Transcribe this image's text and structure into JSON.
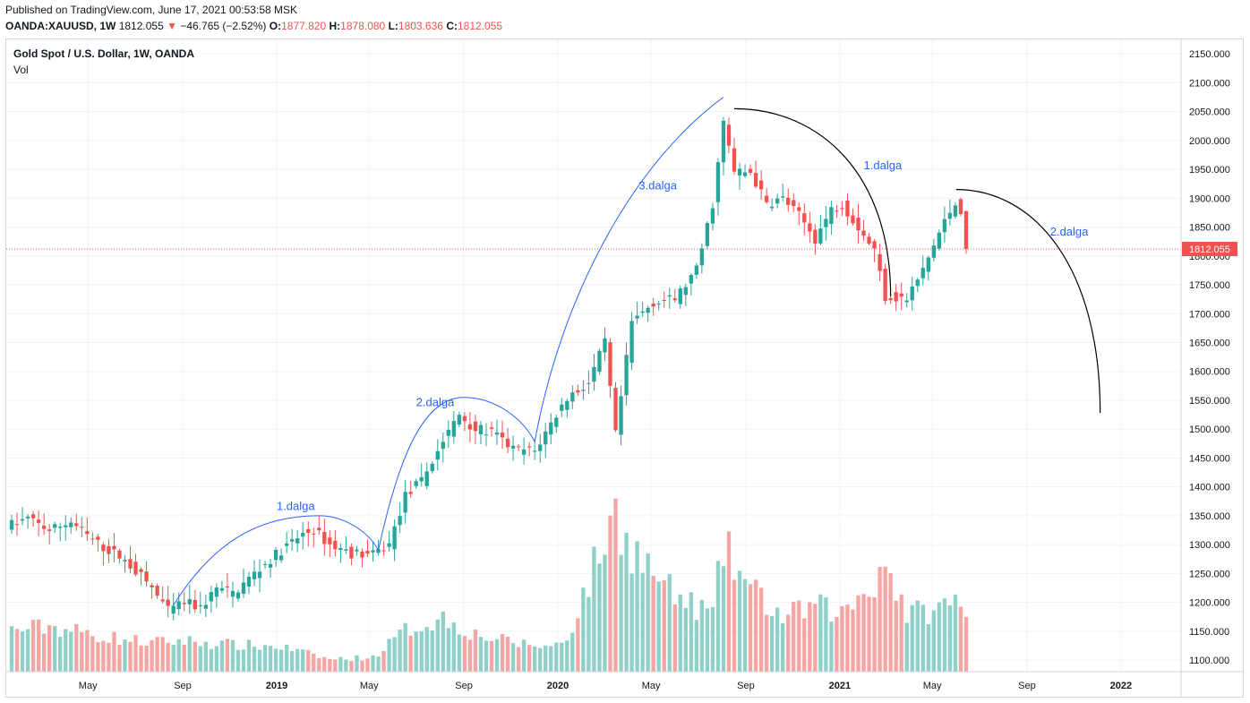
{
  "header": {
    "published": "Published on TradingView.com, June 17, 2021 00:53:58 MSK",
    "symbol": "OANDA:XAUUSD, 1W",
    "last": "1812.055",
    "change_arrow": "▼",
    "change": "−46.765 (−2.52%)",
    "o_label": "O:",
    "o_value": "1877.820",
    "h_label": "H:",
    "h_value": "1878.080",
    "l_label": "L:",
    "l_value": "1803.636",
    "c_label": "C:",
    "c_value": "1812.055"
  },
  "legend": {
    "title": "Gold Spot / U.S. Dollar, 1W, OANDA",
    "volume": "Vol"
  },
  "colors": {
    "up": "#26a69a",
    "down": "#ef5350",
    "vol_up": "#8fd0c8",
    "vol_down": "#f5a5a2",
    "wave_line": "#2962ff",
    "projection": "#000000"
  },
  "chart_data": {
    "type": "candlestick",
    "y_axis": {
      "range": [
        1080,
        2175
      ],
      "ticks": [
        1100,
        1150,
        1200,
        1250,
        1300,
        1350,
        1400,
        1450,
        1500,
        1550,
        1600,
        1650,
        1700,
        1750,
        1800,
        1850,
        1900,
        1950,
        2000,
        2050,
        2100,
        2150
      ],
      "tick_labels": [
        "1100.000",
        "1150.000",
        "1200.000",
        "1250.000",
        "1300.000",
        "1350.000",
        "1400.000",
        "1450.000",
        "1500.000",
        "1550.000",
        "1600.000",
        "1650.000",
        "1700.000",
        "1750.000",
        "1800.000",
        "1850.000",
        "1900.000",
        "1950.000",
        "2000.000",
        "2050.000",
        "2100.000",
        "2150.000"
      ]
    },
    "x_axis": {
      "ticks": [
        {
          "label": "May",
          "date": "2018-05-01",
          "year": false
        },
        {
          "label": "Sep",
          "date": "2018-09-01",
          "year": false
        },
        {
          "label": "2019",
          "date": "2019-01-01",
          "year": true
        },
        {
          "label": "May",
          "date": "2019-05-01",
          "year": false
        },
        {
          "label": "Sep",
          "date": "2019-09-01",
          "year": false
        },
        {
          "label": "2020",
          "date": "2020-01-01",
          "year": true
        },
        {
          "label": "May",
          "date": "2020-05-01",
          "year": false
        },
        {
          "label": "Sep",
          "date": "2020-09-01",
          "year": false
        },
        {
          "label": "2021",
          "date": "2021-01-01",
          "year": true
        },
        {
          "label": "May",
          "date": "2021-05-01",
          "year": false
        },
        {
          "label": "Sep",
          "date": "2021-09-01",
          "year": false
        },
        {
          "label": "2022",
          "date": "2022-01-01",
          "year": true
        }
      ]
    },
    "last_price": 1812.055,
    "last_price_label": "1812.055",
    "price_path": [
      [
        "2018-01-22",
        1335
      ],
      [
        "2018-02-12",
        1345
      ],
      [
        "2018-03-12",
        1325
      ],
      [
        "2018-04-09",
        1340
      ],
      [
        "2018-04-30",
        1315
      ],
      [
        "2018-05-21",
        1295
      ],
      [
        "2018-06-11",
        1280
      ],
      [
        "2018-07-02",
        1255
      ],
      [
        "2018-07-23",
        1225
      ],
      [
        "2018-08-13",
        1185
      ],
      [
        "2018-09-03",
        1200
      ],
      [
        "2018-09-24",
        1190
      ],
      [
        "2018-10-15",
        1225
      ],
      [
        "2018-11-05",
        1215
      ],
      [
        "2018-12-03",
        1250
      ],
      [
        "2019-01-07",
        1290
      ],
      [
        "2019-02-04",
        1318
      ],
      [
        "2019-02-18",
        1325
      ],
      [
        "2019-03-11",
        1300
      ],
      [
        "2019-04-08",
        1285
      ],
      [
        "2019-05-06",
        1282
      ],
      [
        "2019-05-27",
        1300
      ],
      [
        "2019-06-17",
        1385
      ],
      [
        "2019-07-08",
        1410
      ],
      [
        "2019-08-05",
        1480
      ],
      [
        "2019-08-26",
        1525
      ],
      [
        "2019-09-16",
        1500
      ],
      [
        "2019-10-07",
        1495
      ],
      [
        "2019-11-04",
        1465
      ],
      [
        "2019-12-02",
        1462
      ],
      [
        "2019-12-23",
        1510
      ],
      [
        "2020-01-13",
        1555
      ],
      [
        "2020-02-10",
        1580
      ],
      [
        "2020-03-02",
        1650
      ],
      [
        "2020-03-16",
        1490
      ],
      [
        "2020-04-06",
        1685
      ],
      [
        "2020-05-04",
        1720
      ],
      [
        "2020-06-01",
        1725
      ],
      [
        "2020-06-29",
        1775
      ],
      [
        "2020-07-20",
        1890
      ],
      [
        "2020-08-03",
        2030
      ],
      [
        "2020-08-17",
        1945
      ],
      [
        "2020-09-07",
        1945
      ],
      [
        "2020-09-28",
        1890
      ],
      [
        "2020-10-19",
        1900
      ],
      [
        "2020-11-09",
        1870
      ],
      [
        "2020-11-30",
        1830
      ],
      [
        "2020-12-21",
        1880
      ],
      [
        "2021-01-04",
        1890
      ],
      [
        "2021-01-25",
        1850
      ],
      [
        "2021-02-15",
        1810
      ],
      [
        "2021-03-01",
        1730
      ],
      [
        "2021-03-29",
        1725
      ],
      [
        "2021-04-19",
        1775
      ],
      [
        "2021-05-10",
        1840
      ],
      [
        "2021-05-31",
        1895
      ],
      [
        "2021-06-07",
        1878
      ],
      [
        "2021-06-14",
        1812
      ]
    ],
    "volume_path": [
      [
        "2018-01-22",
        1.0
      ],
      [
        "2018-03-12",
        1.1
      ],
      [
        "2018-05-21",
        0.85
      ],
      [
        "2018-07-23",
        0.7
      ],
      [
        "2018-09-03",
        0.75
      ],
      [
        "2018-11-05",
        0.65
      ],
      [
        "2019-01-07",
        0.6
      ],
      [
        "2019-03-11",
        0.3
      ],
      [
        "2019-05-06",
        0.35
      ],
      [
        "2019-06-17",
        1.0
      ],
      [
        "2019-08-05",
        1.3
      ],
      [
        "2019-09-16",
        0.9
      ],
      [
        "2019-11-04",
        0.7
      ],
      [
        "2019-12-23",
        0.6
      ],
      [
        "2020-01-13",
        0.8
      ],
      [
        "2020-03-02",
        3.2
      ],
      [
        "2020-03-16",
        3.8
      ],
      [
        "2020-04-06",
        3.0
      ],
      [
        "2020-05-04",
        2.4
      ],
      [
        "2020-06-01",
        1.8
      ],
      [
        "2020-07-20",
        1.4
      ],
      [
        "2020-08-03",
        3.0
      ],
      [
        "2020-09-07",
        2.0
      ],
      [
        "2020-10-19",
        1.3
      ],
      [
        "2020-11-30",
        1.6
      ],
      [
        "2021-01-04",
        1.4
      ],
      [
        "2021-02-15",
        2.2
      ],
      [
        "2021-03-01",
        2.7
      ],
      [
        "2021-03-29",
        1.4
      ],
      [
        "2021-05-10",
        1.5
      ],
      [
        "2021-05-31",
        1.8
      ],
      [
        "2021-06-14",
        1.1
      ]
    ],
    "annotations": {
      "blue_waves": [
        {
          "label": "1.dalga",
          "start": [
            "2018-08-20",
            1195
          ],
          "peak": [
            "2019-02-25",
            1350
          ],
          "end": [
            "2019-05-13",
            1290
          ],
          "label_pos": [
            "2019-01-01",
            1360
          ]
        },
        {
          "label": "2.dalga",
          "start": [
            "2019-05-13",
            1290
          ],
          "peak": [
            "2019-09-01",
            1555
          ],
          "end": [
            "2019-12-02",
            1478
          ],
          "label_pos": [
            "2019-07-01",
            1540
          ]
        },
        {
          "label": "3.dalga",
          "start": [
            "2019-12-02",
            1478
          ],
          "end": [
            "2020-08-03",
            2075
          ],
          "label_pos": [
            "2020-04-15",
            1915
          ]
        }
      ],
      "black_projection_1": {
        "label": "1.dalga",
        "start": [
          "2020-08-17",
          2055
        ],
        "end": [
          "2021-03-08",
          1730
        ],
        "label_pos": [
          "2021-02-01",
          1950
        ]
      },
      "black_projection_2": {
        "label": "2.dalga",
        "start": [
          "2021-06-01",
          1915
        ],
        "end": [
          "2021-12-05",
          1528
        ],
        "label_pos": [
          "2021-10-01",
          1835
        ]
      }
    }
  }
}
